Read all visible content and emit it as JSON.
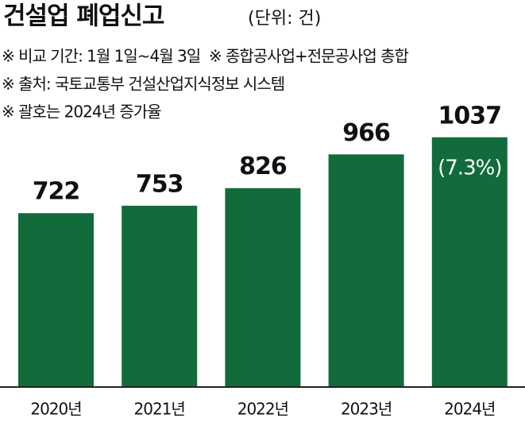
{
  "chart_data": {
    "type": "bar",
    "title": "건설업 폐업신고",
    "subtitle": "(단위: 건)",
    "notes": [
      "※ 비교 기간: 1월 1일~4월 3일  ※ 종합공사업+전문공사업 총합",
      "※ 출처: 국토교통부 건설산업지식정보 시스템",
      "※ 괄호는 2024년 증가율"
    ],
    "categories": [
      "2020년",
      "2021년",
      "2022년",
      "2023년",
      "2024년"
    ],
    "values": [
      722,
      753,
      826,
      966,
      1037
    ],
    "color": "#116b3a",
    "annotation": {
      "category_index": 4,
      "text": "(7.3%)"
    }
  }
}
